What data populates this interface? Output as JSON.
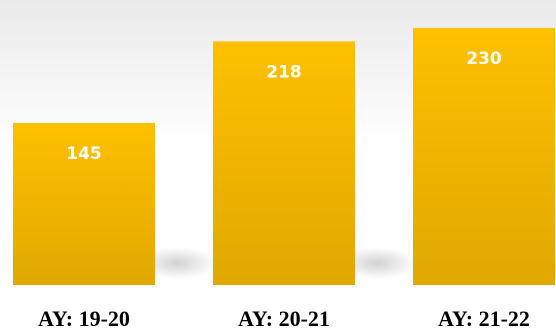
{
  "chart_data": {
    "type": "bar",
    "categories": [
      "AY: 19-20",
      "AY: 20-21",
      "AY: 21-22"
    ],
    "values": [
      145,
      218,
      230
    ],
    "title": "",
    "xlabel": "",
    "ylabel": "",
    "ylim": [
      0,
      255
    ],
    "grid": false,
    "legend": "none",
    "bar_color_top": "#FFC000",
    "bar_color_bottom": "#E0A800",
    "data_label_color": "#FFFFFF",
    "background_shading": "#D9D9D9"
  }
}
